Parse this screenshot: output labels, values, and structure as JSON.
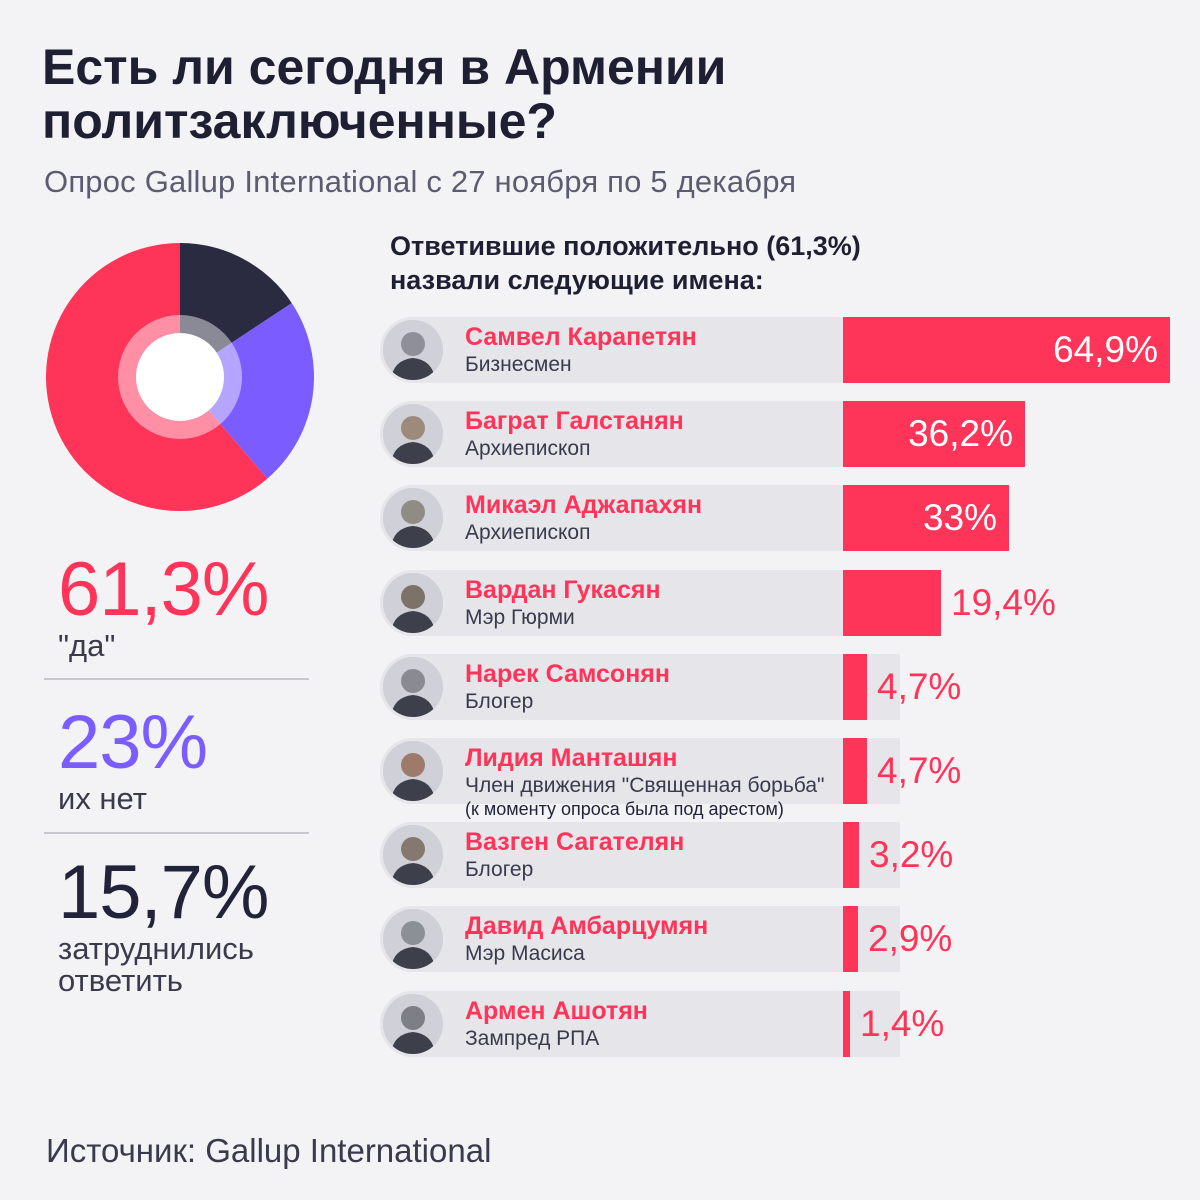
{
  "header": {
    "title_line1": "Есть ли сегодня в Армении",
    "title_line2": "политзаключенные?",
    "subtitle": "Опрос Gallup International с 27 ноября по 5 декабря"
  },
  "summary": {
    "yes_value": "61,3%",
    "yes_label": "\"да\"",
    "no_value": "23%",
    "no_label": "их нет",
    "dk_value": "15,7%",
    "dk_label_line1": "затруднились",
    "dk_label_line2": "ответить"
  },
  "chart_title": {
    "line1": "Ответившие положительно (61,3%)",
    "line2": "назвали следующие имена:"
  },
  "source": "Источник: Gallup International",
  "colors": {
    "accent": "#ff3459",
    "violet": "#7b5cff",
    "dark": "#2a2a40",
    "bg": "#f3f3f6"
  },
  "chart_data": [
    {
      "type": "pie",
      "title": "Есть ли сегодня в Армении политзаключенные?",
      "categories": [
        "\"да\"",
        "их нет",
        "затруднились ответить"
      ],
      "values": [
        61.3,
        23,
        15.7
      ],
      "colors": [
        "#ff3459",
        "#7b5cff",
        "#2a2a40"
      ]
    },
    {
      "type": "bar",
      "orientation": "horizontal",
      "title": "Ответившие положительно (61,3%) назвали следующие имена:",
      "categories": [
        "Самвел Карапетян",
        "Баграт Галстанян",
        "Микаэл Аджапахян",
        "Вардан Гукасян",
        "Нарек Самсонян",
        "Лидия Манташян",
        "Вазген Сагателян",
        "Давид Амбарцумян",
        "Армен Ашотян"
      ],
      "values": [
        64.9,
        36.2,
        33,
        19.4,
        4.7,
        4.7,
        3.2,
        2.9,
        1.4
      ],
      "xlim": [
        0,
        64.9
      ],
      "items": [
        {
          "name": "Самвел Карапетян",
          "role": "Бизнесмен",
          "value": 64.9,
          "label": "64,9%"
        },
        {
          "name": "Баграт Галстанян",
          "role": "Архиепископ",
          "value": 36.2,
          "label": "36,2%"
        },
        {
          "name": "Микаэл Аджапахян",
          "role": "Архиепископ",
          "value": 33,
          "label": "33%"
        },
        {
          "name": "Вардан Гукасян",
          "role": "Мэр Гюрми",
          "value": 19.4,
          "label": "19,4%"
        },
        {
          "name": "Нарек Самсонян",
          "role": "Блогер",
          "value": 4.7,
          "label": "4,7%"
        },
        {
          "name": "Лидия Манташян",
          "role": "Член движения \"Священная борьба\"",
          "note": "(к моменту опроса была под арестом)",
          "value": 4.7,
          "label": "4,7%"
        },
        {
          "name": "Вазген Сагателян",
          "role": "Блогер",
          "value": 3.2,
          "label": "3,2%"
        },
        {
          "name": "Давид Амбарцумян",
          "role": "Мэр Масиса",
          "value": 2.9,
          "label": "2,9%"
        },
        {
          "name": "Армен Ашотян",
          "role": "Зампред РПА",
          "value": 1.4,
          "label": "1,4%"
        }
      ]
    }
  ]
}
